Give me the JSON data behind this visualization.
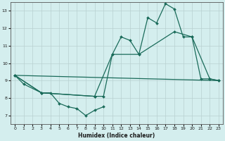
{
  "xlabel": "Humidex (Indice chaleur)",
  "bg_color": "#d4eeee",
  "grid_color": "#b8d0d0",
  "line_color": "#1a6b5a",
  "xlim": [
    -0.5,
    23.5
  ],
  "ylim": [
    6.5,
    13.5
  ],
  "yticks": [
    7,
    8,
    9,
    10,
    11,
    12,
    13
  ],
  "xticks": [
    0,
    1,
    2,
    3,
    4,
    5,
    6,
    7,
    8,
    9,
    10,
    11,
    12,
    13,
    14,
    15,
    16,
    17,
    18,
    19,
    20,
    21,
    22,
    23
  ],
  "series": [
    {
      "x": [
        0,
        1,
        3,
        4,
        5,
        6,
        7,
        8,
        9,
        10
      ],
      "y": [
        9.3,
        8.8,
        8.3,
        8.3,
        7.7,
        7.5,
        7.4,
        7.0,
        7.3,
        7.5
      ]
    },
    {
      "x": [
        0,
        3,
        9,
        10,
        11,
        12,
        13,
        14,
        15,
        16,
        17,
        18,
        19,
        20,
        21,
        22,
        23
      ],
      "y": [
        9.3,
        8.3,
        8.1,
        8.1,
        10.5,
        11.5,
        11.3,
        10.5,
        12.6,
        12.3,
        13.4,
        13.1,
        11.5,
        11.5,
        9.1,
        9.1,
        9.0
      ]
    },
    {
      "x": [
        0,
        3,
        9,
        11,
        14,
        18,
        20,
        22,
        23
      ],
      "y": [
        9.3,
        8.3,
        8.1,
        10.5,
        10.5,
        11.8,
        11.5,
        9.1,
        9.0
      ]
    },
    {
      "x": [
        0,
        23
      ],
      "y": [
        9.3,
        9.0
      ]
    }
  ]
}
